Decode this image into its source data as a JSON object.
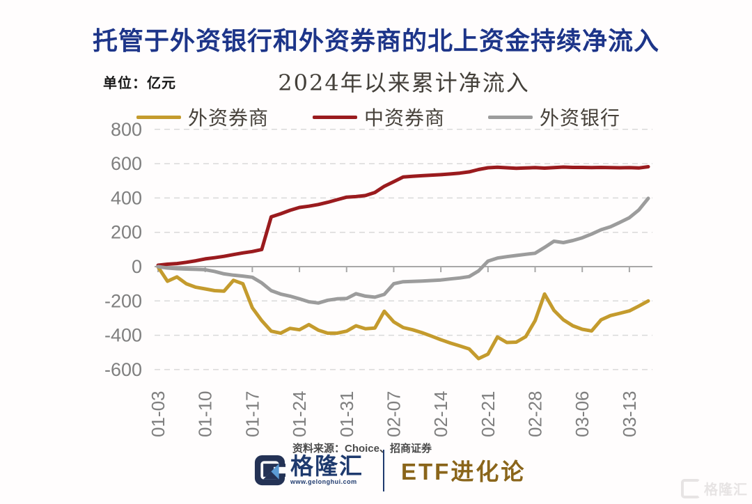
{
  "header": {
    "title": "托管于外资银行和外资券商的北上资金持续净流入"
  },
  "chart": {
    "unit_label": "单位：亿元",
    "subtitle": "2024年以来累计净流入",
    "legend": [
      {
        "label": "外资券商",
        "color": "#c49b2d",
        "x": 196
      },
      {
        "label": "中资券商",
        "color": "#9a1b1e",
        "x": 449
      },
      {
        "label": "外资银行",
        "color": "#9c9c9c",
        "x": 701
      }
    ],
    "chart_data": {
      "type": "line",
      "title": "2024年以来累计净流入",
      "ylabel": "亿元",
      "ylim": [
        -600,
        800
      ],
      "grid": "dashed-horizontal",
      "legend_position": "top",
      "y_ticks": [
        800,
        600,
        400,
        200,
        0,
        -200,
        -400,
        -600
      ],
      "y_tick_labels": [
        "800",
        "600",
        "400",
        "200",
        "0",
        "-200",
        "-400",
        "-600"
      ],
      "x_tick_labels": [
        "01-03",
        "01-10",
        "01-17",
        "01-24",
        "01-31",
        "02-07",
        "02-14",
        "02-21",
        "02-28",
        "03-06",
        "03-13"
      ],
      "x_tick_indices": [
        0,
        5,
        10,
        15,
        20,
        25,
        30,
        35,
        40,
        45,
        50
      ],
      "x_description": "weekday slots from 2024-01-03 to 2024-03-15, one point per weekday",
      "series": [
        {
          "name": "外资券商",
          "color": "#c49b2d",
          "values": [
            -2,
            -85,
            -60,
            -100,
            -120,
            -130,
            -140,
            -143,
            -80,
            -100,
            -240,
            -315,
            -376,
            -388,
            -360,
            -368,
            -338,
            -370,
            -388,
            -388,
            -376,
            -345,
            -362,
            -358,
            -260,
            -322,
            -355,
            -368,
            -385,
            -405,
            -426,
            -445,
            -462,
            -480,
            -536,
            -510,
            -410,
            -442,
            -440,
            -408,
            -315,
            -160,
            -255,
            -310,
            -345,
            -365,
            -375,
            -310,
            -285,
            -272,
            -258,
            -230,
            -200
          ]
        },
        {
          "name": "中资券商",
          "color": "#9a1b1e",
          "values": [
            8,
            14,
            18,
            25,
            34,
            45,
            52,
            60,
            70,
            80,
            88,
            100,
            290,
            308,
            328,
            345,
            352,
            362,
            375,
            390,
            405,
            408,
            414,
            432,
            468,
            495,
            522,
            526,
            530,
            533,
            536,
            540,
            545,
            552,
            566,
            576,
            579,
            576,
            573,
            575,
            577,
            574,
            577,
            580,
            578,
            578,
            577,
            578,
            577,
            576,
            577,
            575,
            582
          ]
        },
        {
          "name": "外资银行",
          "color": "#9c9c9c",
          "values": [
            0,
            -8,
            -12,
            -14,
            -16,
            -18,
            -28,
            -42,
            -50,
            -55,
            -62,
            -95,
            -140,
            -160,
            -172,
            -188,
            -205,
            -212,
            -196,
            -188,
            -186,
            -158,
            -172,
            -178,
            -162,
            -100,
            -88,
            -86,
            -84,
            -81,
            -78,
            -72,
            -66,
            -58,
            -25,
            32,
            50,
            58,
            65,
            72,
            78,
            112,
            148,
            140,
            152,
            168,
            190,
            215,
            232,
            258,
            285,
            330,
            398
          ]
        }
      ],
      "colors": {
        "gridline": "#d9d9d9",
        "zero_axis": "#a8a8a8",
        "tick_text": "#7f7f7f"
      }
    }
  },
  "footer": {
    "source": "资料来源：Choice、招商证券",
    "logo_name": "格隆汇",
    "logo_url": "www.gelonghui.com",
    "brand": "ETF进化论"
  },
  "watermark": {
    "text": "格隆汇"
  }
}
